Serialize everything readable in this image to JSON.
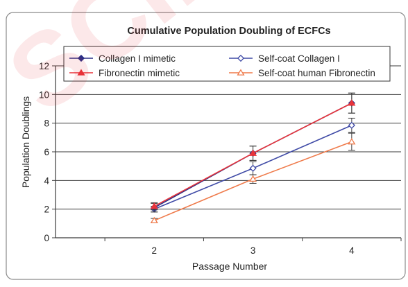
{
  "watermark": {
    "text": "SCIENCE",
    "color": "#e53935"
  },
  "chart_data": {
    "type": "line",
    "title": "Cumulative Population Doubling of ECFCs",
    "xlabel": "Passage Number",
    "ylabel": "Population Doublings",
    "categories": [
      "2",
      "3",
      "4"
    ],
    "ylim": [
      0,
      12
    ],
    "yticks": [
      "0",
      "2",
      "4",
      "6",
      "8",
      "10",
      "12"
    ],
    "grid": true,
    "legend_position": "top",
    "series": [
      {
        "name": "Collagen I mimetic",
        "color": "#2b2f86",
        "marker": "filled-diamond",
        "values": [
          2.1,
          5.9,
          9.4
        ],
        "errors": [
          0.3,
          0.5,
          0.7
        ]
      },
      {
        "name": "Self-coat Collagen I",
        "color": "#3f4aa6",
        "marker": "open-diamond",
        "values": [
          2.0,
          4.85,
          7.85
        ],
        "errors": [
          0.2,
          0.45,
          0.5
        ]
      },
      {
        "name": "Fibronectin mimetic",
        "color": "#e8343a",
        "marker": "filled-triangle",
        "values": [
          2.2,
          5.9,
          9.4
        ],
        "errors": [
          0.25,
          0.5,
          0.7
        ]
      },
      {
        "name": "Self-coat human Fibronectin",
        "color": "#ef7a4a",
        "marker": "open-triangle",
        "values": [
          1.2,
          4.1,
          6.7
        ],
        "errors": [
          0.15,
          0.3,
          0.6
        ]
      }
    ]
  }
}
